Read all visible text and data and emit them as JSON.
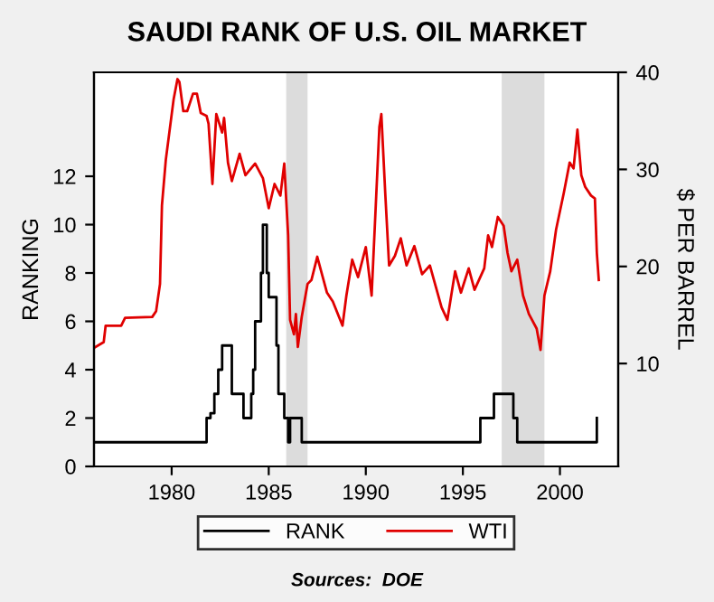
{
  "chart_data": {
    "type": "line",
    "title": "SAUDI RANK OF U.S. OIL MARKET",
    "ylabel": "RANKING",
    "y2label": "$ PER BARREL",
    "annotations": [
      "Sources:  DOE"
    ],
    "xlim": [
      1976,
      2003
    ],
    "xticks": [
      1980,
      1985,
      1990,
      1995,
      2000
    ],
    "ylim": [
      0,
      16.3
    ],
    "yticks": [
      0,
      2,
      4,
      6,
      8,
      10,
      12
    ],
    "y2lim": [
      -0.6,
      40
    ],
    "y2ticks": [
      10,
      20,
      30,
      40
    ],
    "legend": "bottom",
    "grid": false,
    "bands": [
      {
        "axis": "x",
        "from": 1985.9,
        "to": 1987.0,
        "color": "#dcdcdc"
      },
      {
        "axis": "x",
        "from": 1997.0,
        "to": 1999.2,
        "color": "#dcdcdc"
      }
    ],
    "series": [
      {
        "name": "RANK",
        "type": "step",
        "color": "#000000",
        "x": [
          1976,
          1981.8,
          1982.0,
          1982.2,
          1982.4,
          1982.6,
          1982.8,
          1983.1,
          1983.3,
          1983.7,
          1984.1,
          1984.2,
          1984.3,
          1984.4,
          1984.6,
          1984.7,
          1984.9,
          1985.0,
          1985.1,
          1985.4,
          1985.5,
          1985.8,
          1986.0,
          1986.1,
          1986.2,
          1986.7,
          1995.9,
          1996.6,
          1997.6,
          1997.8,
          2001.8,
          2001.9
        ],
        "values": [
          1,
          2,
          2.2,
          3,
          4,
          5,
          5,
          3,
          3,
          2,
          3,
          4,
          6,
          6,
          8,
          10,
          8,
          7,
          7,
          5,
          3,
          2,
          1,
          2,
          2,
          1,
          2,
          3,
          2,
          1,
          1,
          2
        ]
      },
      {
        "name": "WTI",
        "axis": "y2",
        "color": "#e00000",
        "x": [
          1976,
          1976.5,
          1976.6,
          1977.4,
          1977.6,
          1979.0,
          1979.2,
          1979.4,
          1979.5,
          1979.7,
          1980.1,
          1980.3,
          1980.4,
          1980.6,
          1980.8,
          1981.1,
          1981.3,
          1981.5,
          1981.8,
          1981.9,
          1982.1,
          1982.3,
          1982.6,
          1982.7,
          1982.9,
          1983.1,
          1983.5,
          1983.8,
          1984.3,
          1984.7,
          1985.0,
          1985.3,
          1985.6,
          1985.8,
          1986.0,
          1986.1,
          1986.3,
          1986.4,
          1986.5,
          1986.7,
          1987.0,
          1987.2,
          1987.5,
          1988.0,
          1988.3,
          1988.8,
          1989.0,
          1989.3,
          1989.6,
          1990.0,
          1990.3,
          1990.7,
          1990.8,
          1991.0,
          1991.2,
          1991.5,
          1991.8,
          1992.1,
          1992.5,
          1992.9,
          1993.3,
          1993.9,
          1994.2,
          1994.6,
          1994.9,
          1995.3,
          1995.6,
          1996.1,
          1996.3,
          1996.5,
          1996.8,
          1997.1,
          1997.3,
          1997.5,
          1997.8,
          1998.1,
          1998.4,
          1998.8,
          1999.0,
          1999.2,
          1999.5,
          1999.8,
          2000.2,
          2000.5,
          2000.7,
          2000.9,
          2001.1,
          2001.3,
          2001.6,
          2001.8,
          2001.9,
          2002.0
        ],
        "values": [
          11.6,
          12.2,
          13.9,
          13.9,
          14.7,
          14.8,
          15.4,
          18.2,
          26.3,
          31.0,
          37.2,
          39.3,
          39.0,
          36.0,
          36.0,
          37.8,
          37.8,
          35.8,
          35.5,
          34.7,
          28.5,
          35.7,
          33.8,
          35.3,
          30.7,
          28.8,
          31.6,
          29.4,
          30.6,
          29.1,
          26.0,
          28.5,
          27.3,
          30.6,
          23.2,
          14.5,
          13.0,
          15.1,
          11.7,
          14.8,
          18.2,
          18.6,
          21.0,
          17.3,
          16.4,
          13.9,
          17.0,
          20.7,
          18.9,
          22.0,
          17.0,
          34.4,
          35.7,
          27.6,
          20.1,
          21.1,
          22.9,
          20.1,
          22.1,
          19.2,
          20.1,
          15.8,
          14.5,
          19.5,
          17.3,
          19.8,
          17.6,
          19.8,
          23.2,
          22.0,
          25.1,
          24.2,
          21.4,
          19.5,
          20.7,
          17.0,
          15.1,
          13.6,
          11.4,
          17.0,
          19.5,
          23.8,
          27.6,
          30.7,
          30.1,
          34.1,
          29.4,
          28.2,
          27.3,
          27.0,
          21.4,
          18.6
        ]
      }
    ]
  }
}
